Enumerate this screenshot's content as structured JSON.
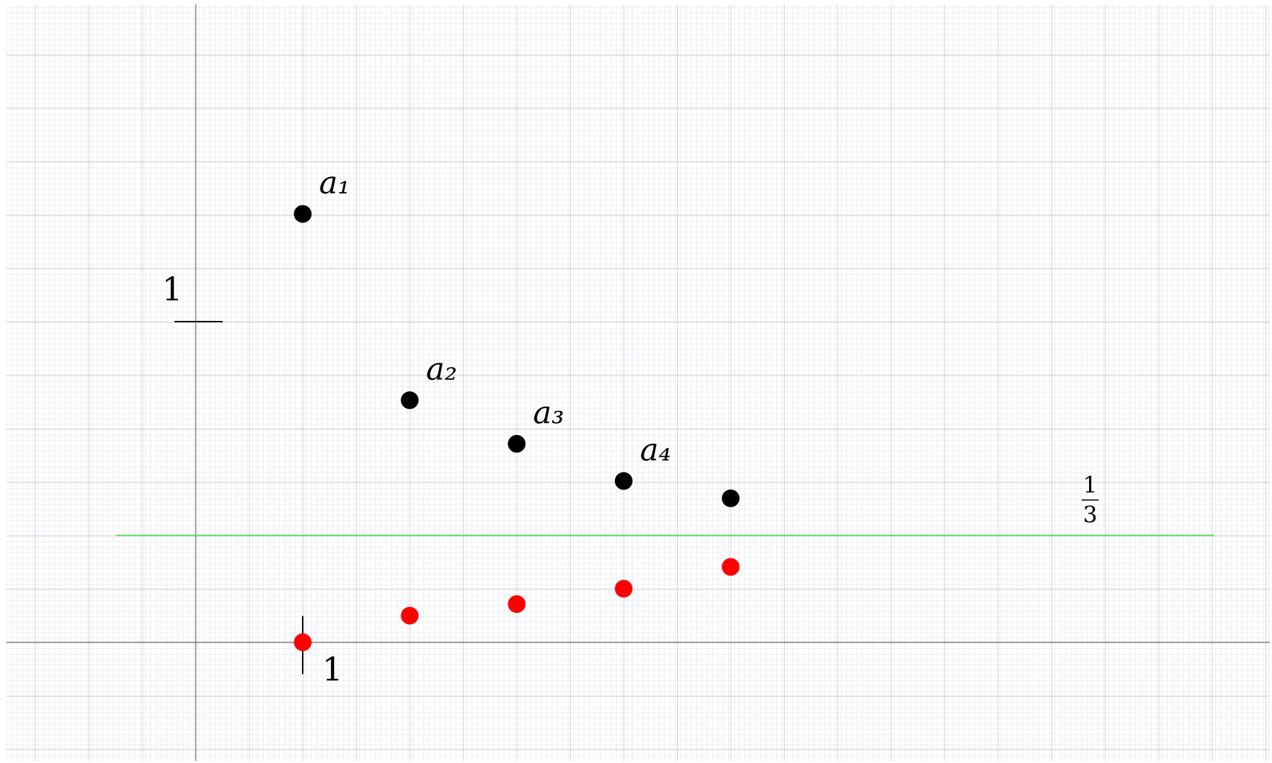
{
  "chart_data": {
    "type": "scatter",
    "xlim": [
      -1.77,
      10.04
    ],
    "ylim": [
      -0.37,
      1.99
    ],
    "xticks": [
      1
    ],
    "yticks": [
      1
    ],
    "series": [
      {
        "color": "#000000",
        "x": [
          1,
          2,
          3,
          4,
          5
        ],
        "values": [
          1.336,
          0.755,
          0.619,
          0.503,
          0.449
        ],
        "point_labels": [
          "a₁",
          "a₂",
          "a₃",
          "a₄",
          null
        ]
      },
      {
        "color": "#ff0000",
        "x": [
          1,
          2,
          3,
          4,
          5
        ],
        "values": [
          0,
          0.083,
          0.119,
          0.167,
          0.235
        ]
      }
    ],
    "hline": {
      "value": 0.3333,
      "color": "#55dd55",
      "numerator": "1",
      "denominator": "3"
    }
  }
}
